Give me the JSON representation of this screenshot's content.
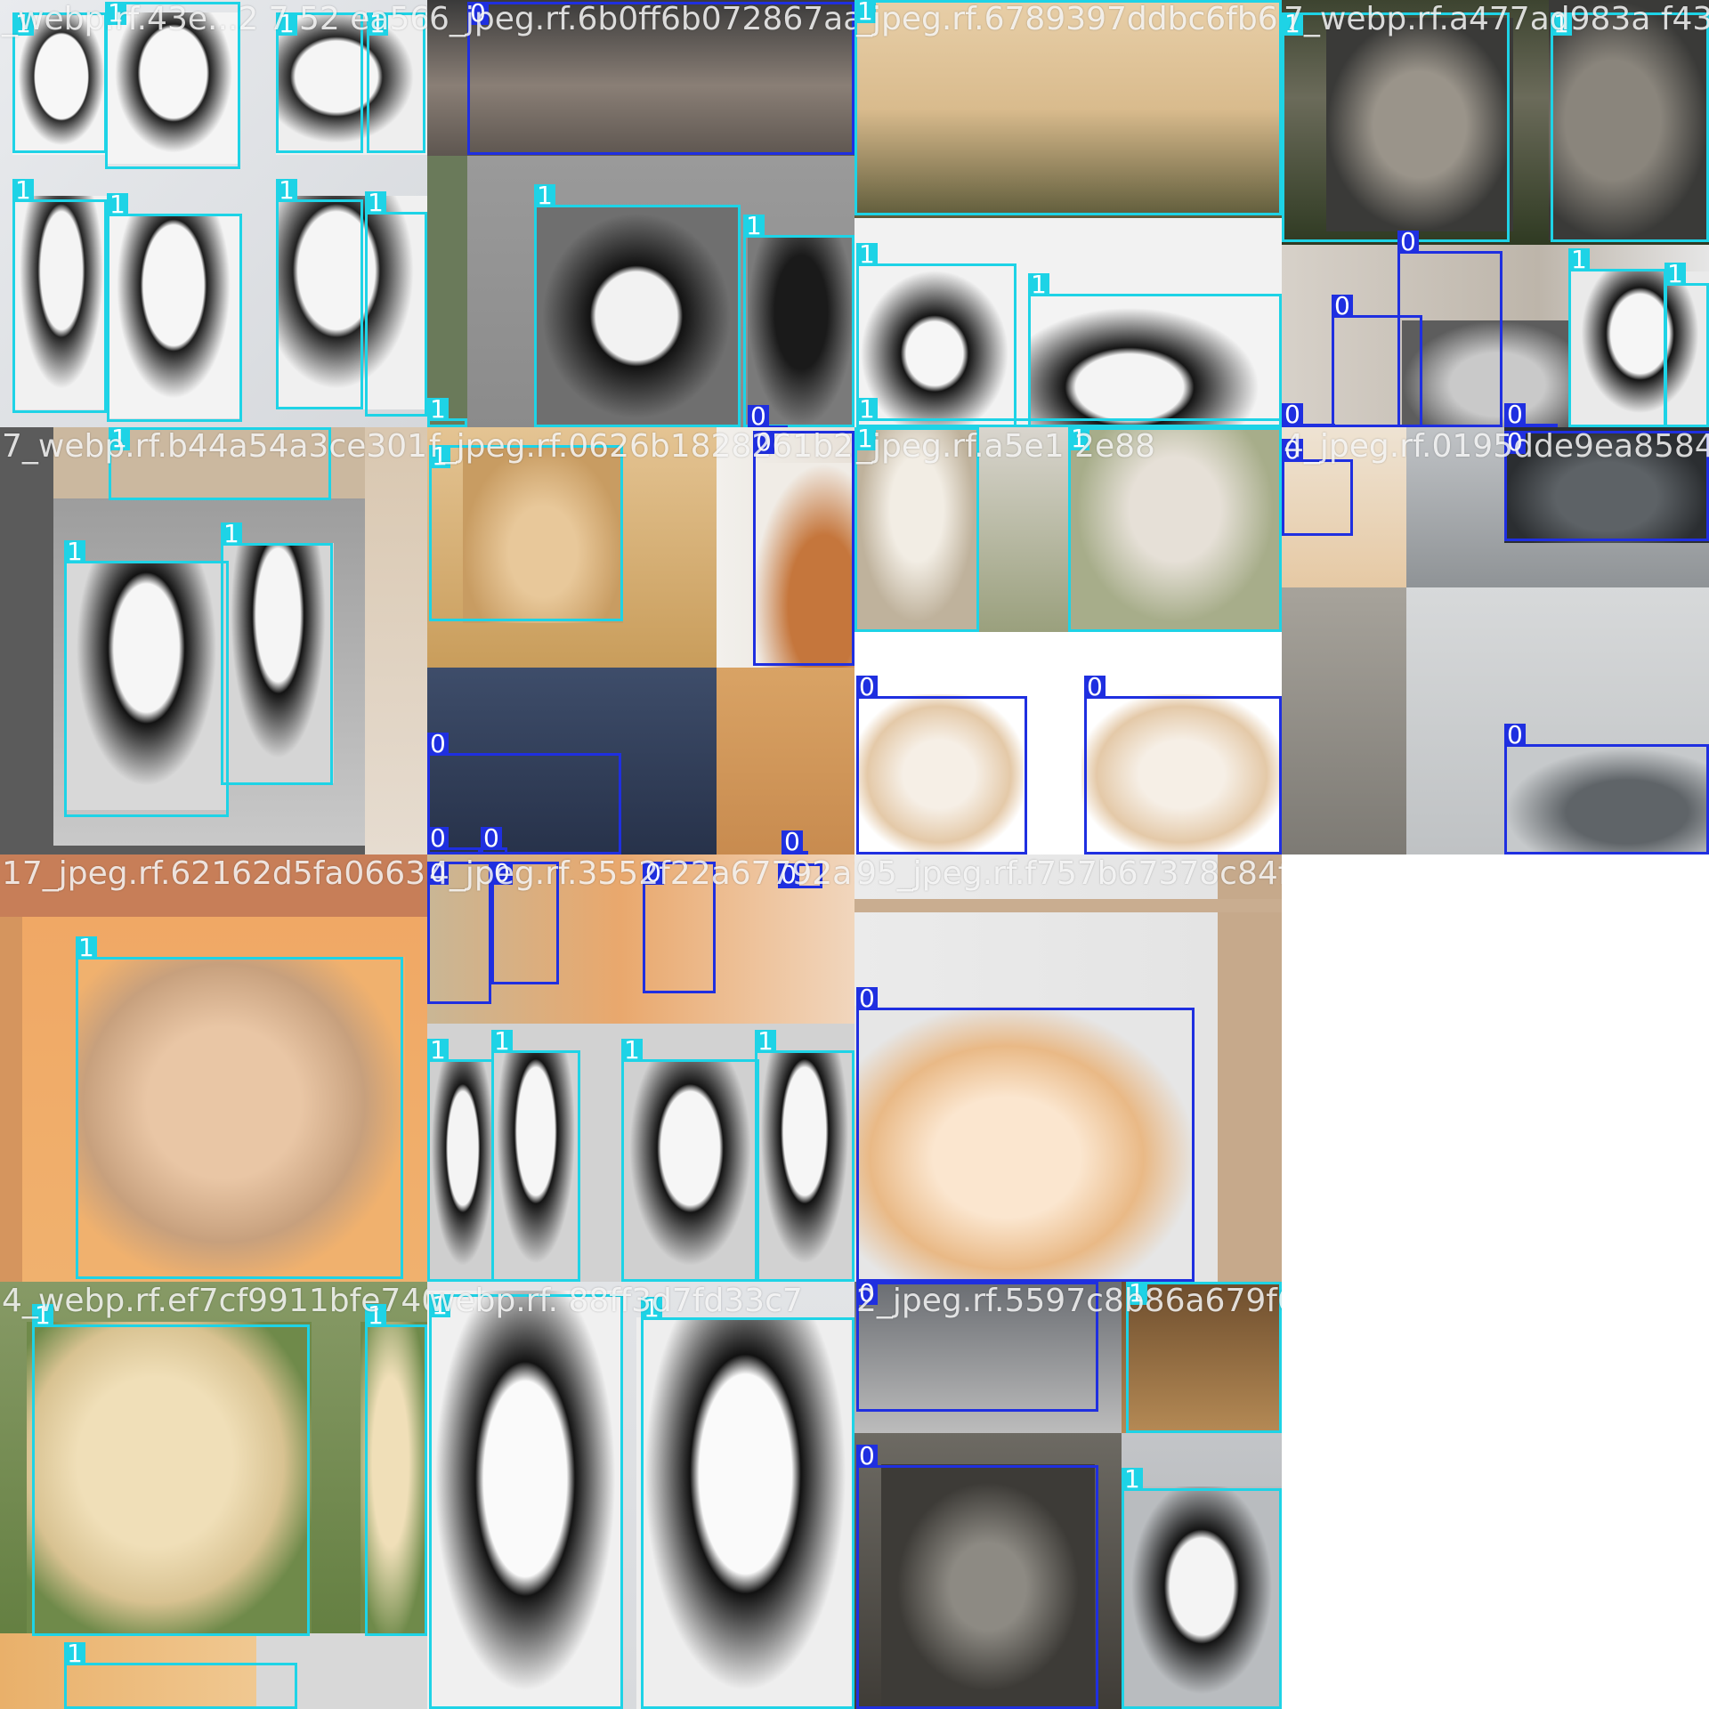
{
  "classes": {
    "0": {
      "label": "0",
      "color": "#1f2fe0"
    },
    "1": {
      "label": "1",
      "color": "#1ed3e6"
    }
  },
  "mosaic": {
    "tiles": [
      {
        "name": "tile-r0c0",
        "filename": "_webp.rf.43e...2  7   52 ea566",
        "boxes": [
          {
            "cls": "1"
          },
          {
            "cls": "1"
          },
          {
            "cls": "1"
          },
          {
            "cls": "1"
          },
          {
            "cls": "1"
          },
          {
            "cls": "1"
          },
          {
            "cls": "1"
          },
          {
            "cls": "1"
          }
        ]
      },
      {
        "name": "tile-r0c1",
        "filename": "6_jpeg.rf.6b0ff6b072867aa982b",
        "boxes": [
          {
            "cls": "0"
          },
          {
            "cls": "1"
          },
          {
            "cls": "1"
          },
          {
            "cls": "1"
          },
          {
            "cls": "0"
          }
        ]
      },
      {
        "name": "tile-r0c2",
        "filename": "_jpeg.rf.6789397ddbc6fb6",
        "boxes": [
          {
            "cls": "1"
          },
          {
            "cls": "1"
          },
          {
            "cls": "1"
          },
          {
            "cls": "1"
          }
        ]
      },
      {
        "name": "tile-r0c3",
        "filename": "7_webp.rf.a477ad983a f4381c64",
        "boxes": [
          {
            "cls": "1"
          },
          {
            "cls": "1"
          },
          {
            "cls": "0"
          },
          {
            "cls": "0"
          },
          {
            "cls": "1"
          },
          {
            "cls": "1"
          },
          {
            "cls": "0"
          },
          {
            "cls": "0"
          }
        ]
      },
      {
        "name": "tile-r1c0",
        "filename": "7_webp.rf.b44a54a3ce3014",
        "boxes": [
          {
            "cls": "1"
          },
          {
            "cls": "1"
          },
          {
            "cls": "1"
          }
        ]
      },
      {
        "name": "tile-r1c1",
        "filename": "f_jpeg.rf.0626b1828261b2a41",
        "boxes": [
          {
            "cls": "1"
          },
          {
            "cls": "0"
          },
          {
            "cls": "0"
          },
          {
            "cls": "0"
          },
          {
            "cls": "0"
          },
          {
            "cls": "0"
          }
        ]
      },
      {
        "name": "tile-r1c2",
        "filename": "_jpeg.rf.a5e1 2e88",
        "boxes": [
          {
            "cls": "1"
          },
          {
            "cls": "1"
          },
          {
            "cls": "0"
          },
          {
            "cls": "0"
          }
        ]
      },
      {
        "name": "tile-r1c3",
        "filename": "4_jpeg.rf.0195dde9ea8584",
        "boxes": [
          {
            "cls": "0"
          },
          {
            "cls": "0"
          },
          {
            "cls": "0"
          }
        ]
      },
      {
        "name": "tile-r2c0",
        "filename": "17_jpeg.rf.62162d5fa06632b",
        "boxes": [
          {
            "cls": "1"
          }
        ]
      },
      {
        "name": "tile-r2c1",
        "filename": "4_jpeg.rf.3552f22a67792a1",
        "boxes": [
          {
            "cls": "0"
          },
          {
            "cls": "0"
          },
          {
            "cls": "0"
          },
          {
            "cls": "0"
          },
          {
            "cls": "1"
          },
          {
            "cls": "1"
          },
          {
            "cls": "1"
          },
          {
            "cls": "1"
          }
        ]
      },
      {
        "name": "tile-r2c2",
        "filename": "95_jpeg.rf.f757b67378c84f94e3c16cc9babc4",
        "boxes": [
          {
            "cls": "0"
          }
        ]
      },
      {
        "name": "tile-r3c0",
        "filename": "4_webp.rf.ef7cf9911bfe7400",
        "boxes": [
          {
            "cls": "1"
          },
          {
            "cls": "1"
          },
          {
            "cls": "1"
          }
        ]
      },
      {
        "name": "tile-r3c1",
        "filename": "webp.rf.  88ff3d7fd33c7",
        "boxes": [
          {
            "cls": "1"
          },
          {
            "cls": "1"
          }
        ]
      },
      {
        "name": "tile-r3c2",
        "filename": "2_jpeg.rf.5597c8b86a679f6c136fe88684a15",
        "boxes": [
          {
            "cls": "0"
          },
          {
            "cls": "1"
          },
          {
            "cls": "0"
          },
          {
            "cls": "1"
          }
        ]
      }
    ]
  }
}
